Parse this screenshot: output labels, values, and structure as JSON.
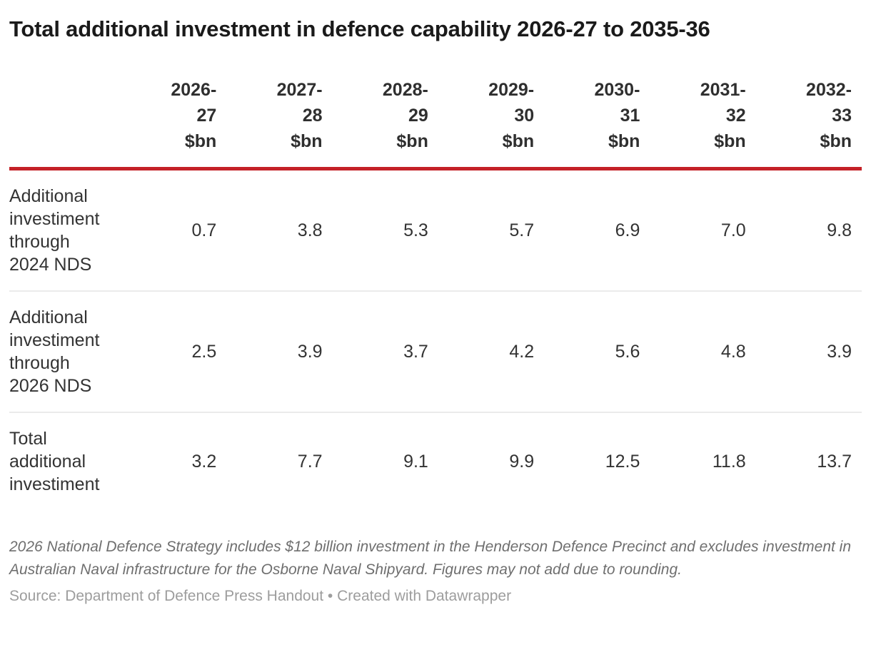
{
  "title": "Total additional investment in defence capability 2026-27 to 2035-36",
  "table": {
    "header_lines": [
      [
        "2026-",
        "27",
        "$bn"
      ],
      [
        "2027-",
        "28",
        "$bn"
      ],
      [
        "2028-",
        "29",
        "$bn"
      ],
      [
        "2029-",
        "30",
        "$bn"
      ],
      [
        "2030-",
        "31",
        "$bn"
      ],
      [
        "2031-",
        "32",
        "$bn"
      ],
      [
        "2032-",
        "33",
        "$bn"
      ]
    ],
    "rows": [
      {
        "label": "Additional investiment through 2024 NDS",
        "values": [
          "0.7",
          "3.8",
          "5.3",
          "5.7",
          "6.9",
          "7.0",
          "9.8"
        ]
      },
      {
        "label": "Additional investiment through 2026 NDS",
        "values": [
          "2.5",
          "3.9",
          "3.7",
          "4.2",
          "5.6",
          "4.8",
          "3.9"
        ]
      },
      {
        "label": "Total additional investiment",
        "values": [
          "3.2",
          "7.7",
          "9.1",
          "9.9",
          "12.5",
          "11.8",
          "13.7"
        ]
      }
    ]
  },
  "footnote": "2026 National Defence Strategy includes $12 billion investment in the Henderson Defence Precinct and excludes investment in Australian Naval infrastructure for the Osborne Naval Shipyard. Figures may not add due to rounding.",
  "source": {
    "text": "Source: Department of Defence Press Handout",
    "separator": " • ",
    "credit": "Created with Datawrapper"
  },
  "colors": {
    "accent_rule": "#c42127",
    "row_divider": "#ebebeb",
    "title_text": "#1a1a1a",
    "body_text": "#333333",
    "footnote_text": "#6f6f6f",
    "source_text": "#9d9d9d"
  },
  "chart_data": {
    "type": "table",
    "title": "Total additional investment in defence capability 2026-27 to 2035-36",
    "columns": [
      "2026-27 $bn",
      "2027-28 $bn",
      "2028-29 $bn",
      "2029-30 $bn",
      "2030-31 $bn",
      "2031-32 $bn",
      "2032-33 $bn"
    ],
    "series": [
      {
        "name": "Additional investiment through 2024 NDS",
        "values": [
          0.7,
          3.8,
          5.3,
          5.7,
          6.9,
          7.0,
          9.8
        ]
      },
      {
        "name": "Additional investiment through 2026 NDS",
        "values": [
          2.5,
          3.9,
          3.7,
          4.2,
          5.6,
          4.8,
          3.9
        ]
      },
      {
        "name": "Total additional investiment",
        "values": [
          3.2,
          7.7,
          9.1,
          9.9,
          12.5,
          11.8,
          13.7
        ]
      }
    ],
    "notes": "2026 National Defence Strategy includes $12 billion investment in the Henderson Defence Precinct and excludes investment in Australian Naval infrastructure for the Osborne Naval Shipyard. Figures may not add due to rounding.",
    "source": "Department of Defence Press Handout",
    "credit": "Created with Datawrapper",
    "layout_hints": {
      "header_rule_color": "#c42127",
      "grid": "horizontal-dividers-only"
    }
  }
}
